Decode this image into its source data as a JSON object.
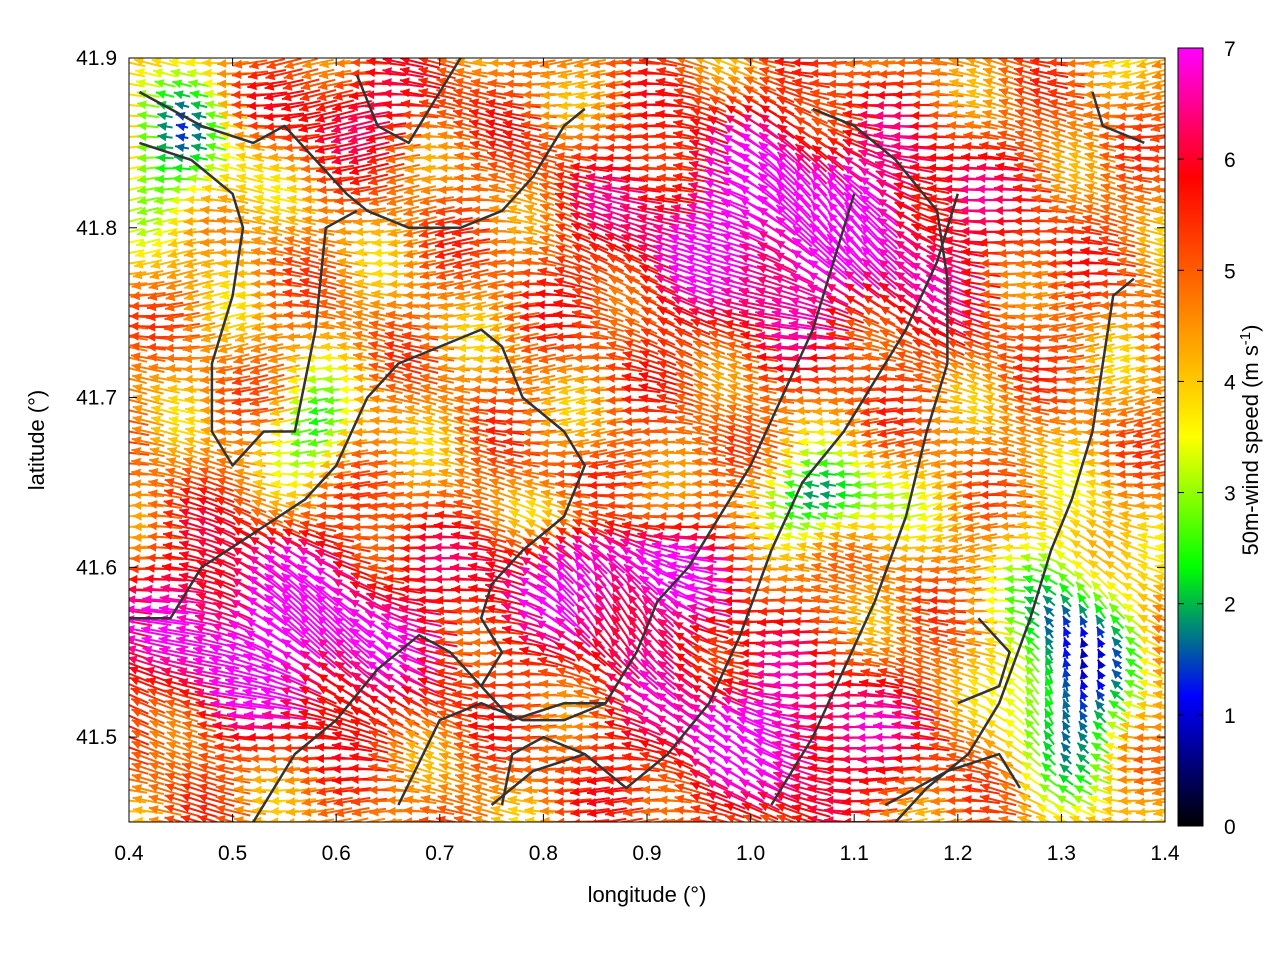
{
  "chart_data": {
    "type": "vector_field",
    "title": "",
    "xlabel": "longitude (°)",
    "ylabel": "latitude (°)",
    "xlim": [
      0.4,
      1.4
    ],
    "ylim": [
      41.45,
      41.9
    ],
    "xticks": [
      "0.4",
      "0.5",
      "0.6",
      "0.7",
      "0.8",
      "0.9",
      "1.0",
      "1.1",
      "1.2",
      "1.3",
      "1.4"
    ],
    "xtick_values": [
      0.4,
      0.5,
      0.6,
      0.7,
      0.8,
      0.9,
      1.0,
      1.1,
      1.2,
      1.3,
      1.4
    ],
    "yticks": [
      "41.5",
      "41.6",
      "41.7",
      "41.8",
      "41.9"
    ],
    "ytick_values": [
      41.5,
      41.6,
      41.7,
      41.8,
      41.9
    ],
    "colorbar": {
      "label_main": "50m-wind speed (m s",
      "label_sup": "-1",
      "label_end": ")",
      "range": [
        0,
        7
      ],
      "ticks": [
        "0",
        "1",
        "2",
        "3",
        "4",
        "5",
        "6",
        "7"
      ],
      "tick_values": [
        0,
        1,
        2,
        3,
        4,
        5,
        6,
        7
      ],
      "stops": [
        "#000000",
        "#0000ff",
        "#00ff00",
        "#ffff00",
        "#ff8000",
        "#ff0000",
        "#ff00ff"
      ]
    },
    "contour_color": "#333333",
    "grid": false,
    "contours": [
      [
        [
          0.41,
          41.88
        ],
        [
          0.47,
          41.86
        ],
        [
          0.52,
          41.85
        ],
        [
          0.55,
          41.86
        ],
        [
          0.58,
          41.84
        ],
        [
          0.61,
          41.82
        ],
        [
          0.63,
          41.81
        ],
        [
          0.67,
          41.8
        ],
        [
          0.72,
          41.8
        ],
        [
          0.76,
          41.81
        ],
        [
          0.79,
          41.83
        ],
        [
          0.82,
          41.86
        ],
        [
          0.84,
          41.87
        ]
      ],
      [
        [
          0.41,
          41.85
        ],
        [
          0.46,
          41.84
        ],
        [
          0.5,
          41.82
        ],
        [
          0.51,
          41.8
        ],
        [
          0.5,
          41.76
        ],
        [
          0.48,
          41.72
        ],
        [
          0.48,
          41.68
        ],
        [
          0.5,
          41.66
        ],
        [
          0.53,
          41.68
        ],
        [
          0.56,
          41.68
        ],
        [
          0.58,
          41.74
        ],
        [
          0.59,
          41.8
        ],
        [
          0.62,
          41.81
        ]
      ],
      [
        [
          0.4,
          41.57
        ],
        [
          0.44,
          41.57
        ],
        [
          0.47,
          41.6
        ],
        [
          0.52,
          41.62
        ],
        [
          0.57,
          41.64
        ],
        [
          0.6,
          41.66
        ],
        [
          0.63,
          41.7
        ],
        [
          0.66,
          41.72
        ],
        [
          0.7,
          41.73
        ],
        [
          0.74,
          41.74
        ],
        [
          0.76,
          41.73
        ],
        [
          0.78,
          41.7
        ],
        [
          0.82,
          41.68
        ],
        [
          0.84,
          41.66
        ],
        [
          0.82,
          41.63
        ],
        [
          0.78,
          41.61
        ],
        [
          0.75,
          41.59
        ],
        [
          0.74,
          41.57
        ],
        [
          0.76,
          41.55
        ],
        [
          0.74,
          41.53
        ]
      ],
      [
        [
          0.52,
          41.45
        ],
        [
          0.56,
          41.49
        ],
        [
          0.6,
          41.51
        ],
        [
          0.64,
          41.54
        ],
        [
          0.68,
          41.56
        ],
        [
          0.71,
          41.55
        ],
        [
          0.74,
          41.53
        ],
        [
          0.77,
          41.51
        ],
        [
          0.82,
          41.52
        ],
        [
          0.86,
          41.52
        ],
        [
          0.89,
          41.55
        ],
        [
          0.91,
          41.58
        ],
        [
          0.94,
          41.6
        ],
        [
          0.97,
          41.63
        ],
        [
          1.0,
          41.66
        ],
        [
          1.03,
          41.7
        ],
        [
          1.06,
          41.74
        ],
        [
          1.08,
          41.78
        ],
        [
          1.1,
          41.82
        ]
      ],
      [
        [
          0.66,
          41.46
        ],
        [
          0.7,
          41.51
        ],
        [
          0.74,
          41.52
        ],
        [
          0.78,
          41.51
        ],
        [
          0.82,
          41.51
        ],
        [
          0.86,
          41.52
        ]
      ],
      [
        [
          0.75,
          41.46
        ],
        [
          0.79,
          41.48
        ],
        [
          0.84,
          41.49
        ],
        [
          0.88,
          41.47
        ],
        [
          0.92,
          41.49
        ],
        [
          0.96,
          41.52
        ],
        [
          0.99,
          41.56
        ],
        [
          1.02,
          41.61
        ],
        [
          1.05,
          41.65
        ],
        [
          1.09,
          41.68
        ],
        [
          1.12,
          41.71
        ],
        [
          1.15,
          41.74
        ],
        [
          1.18,
          41.78
        ],
        [
          1.2,
          41.82
        ]
      ],
      [
        [
          1.02,
          41.46
        ],
        [
          1.06,
          41.5
        ],
        [
          1.09,
          41.54
        ],
        [
          1.12,
          41.58
        ],
        [
          1.15,
          41.63
        ],
        [
          1.17,
          41.68
        ],
        [
          1.19,
          41.72
        ],
        [
          1.19,
          41.77
        ],
        [
          1.18,
          41.81
        ],
        [
          1.14,
          41.84
        ],
        [
          1.1,
          41.86
        ],
        [
          1.06,
          41.87
        ]
      ],
      [
        [
          1.14,
          41.45
        ],
        [
          1.17,
          41.47
        ],
        [
          1.21,
          41.49
        ],
        [
          1.24,
          41.52
        ],
        [
          1.27,
          41.57
        ],
        [
          1.29,
          41.61
        ],
        [
          1.31,
          41.64
        ],
        [
          1.33,
          41.68
        ],
        [
          1.34,
          41.72
        ],
        [
          1.35,
          41.76
        ],
        [
          1.37,
          41.77
        ]
      ],
      [
        [
          1.2,
          41.52
        ],
        [
          1.24,
          41.53
        ],
        [
          1.25,
          41.55
        ],
        [
          1.22,
          41.57
        ]
      ],
      [
        [
          1.13,
          41.46
        ],
        [
          1.19,
          41.48
        ],
        [
          1.24,
          41.49
        ],
        [
          1.26,
          41.47
        ]
      ],
      [
        [
          0.76,
          41.46
        ],
        [
          0.77,
          41.49
        ],
        [
          0.8,
          41.5
        ],
        [
          0.84,
          41.49
        ]
      ],
      [
        [
          0.62,
          41.89
        ],
        [
          0.64,
          41.86
        ],
        [
          0.67,
          41.85
        ],
        [
          0.7,
          41.88
        ],
        [
          0.72,
          41.9
        ]
      ],
      [
        [
          1.33,
          41.88
        ],
        [
          1.34,
          41.86
        ],
        [
          1.38,
          41.85
        ]
      ]
    ]
  }
}
